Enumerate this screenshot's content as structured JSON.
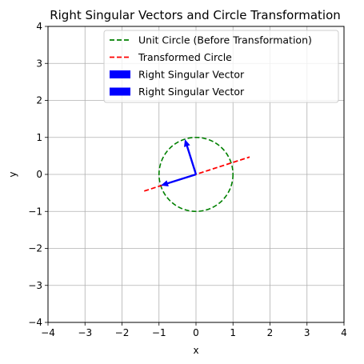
{
  "chart_data": {
    "type": "line",
    "title": "Right Singular Vectors and Circle Transformation",
    "xlabel": "x",
    "ylabel": "y",
    "xlim": [
      -4,
      4
    ],
    "ylim": [
      -4,
      4
    ],
    "grid": true,
    "legend_position": "top-right",
    "x_ticks": [
      -4,
      -3,
      -2,
      -1,
      0,
      1,
      2,
      3,
      4
    ],
    "y_ticks": [
      -4,
      -3,
      -2,
      -1,
      0,
      1,
      2,
      3,
      4
    ],
    "x_tick_labels": [
      "−4",
      "−3",
      "−2",
      "−1",
      "0",
      "1",
      "2",
      "3",
      "4"
    ],
    "y_tick_labels": [
      "−4",
      "−3",
      "−2",
      "−1",
      "0",
      "1",
      "2",
      "3",
      "4"
    ],
    "series": [
      {
        "name": "Unit Circle (Before Transformation)",
        "kind": "circle",
        "center": [
          0,
          0
        ],
        "radius": 1,
        "color": "#008000",
        "linestyle": "dashed"
      },
      {
        "name": "Transformed Circle",
        "kind": "segment",
        "x": [
          -1.4,
          1.45
        ],
        "y": [
          -0.45,
          0.47
        ],
        "color": "#ff0000",
        "linestyle": "dashed"
      }
    ],
    "vectors": [
      {
        "name": "Right Singular Vector",
        "origin": [
          0,
          0
        ],
        "components": [
          -0.3,
          0.95
        ],
        "color": "#0000ff"
      },
      {
        "name": "Right Singular Vector",
        "origin": [
          0,
          0
        ],
        "components": [
          -0.95,
          -0.3
        ],
        "color": "#0000ff"
      }
    ]
  }
}
